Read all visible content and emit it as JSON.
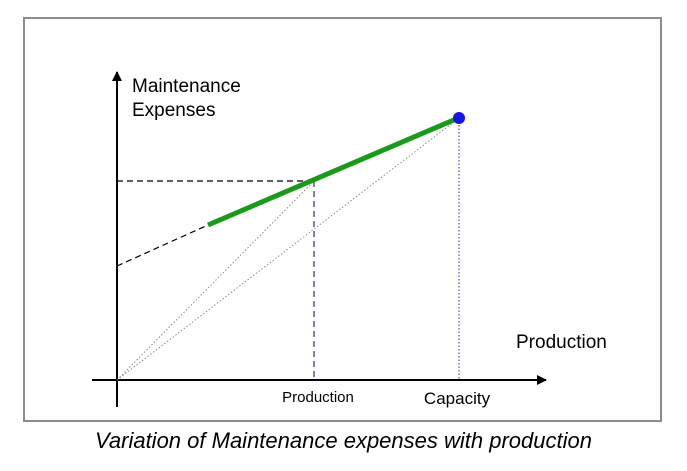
{
  "diagram": {
    "y_axis_label_line1": "Maintenance",
    "y_axis_label_line2": "Expenses",
    "x_axis_title": "Production",
    "x_tick_production": "Production",
    "x_tick_capacity": "Capacity",
    "caption": "Variation of Maintenance expenses with production",
    "colors": {
      "expense_line": "#1a9a1a",
      "capacity_point": "#1414e6",
      "guide_lines": "#2a2a8c",
      "ray_lines": "#8a8a8a",
      "frame": "#8c8c8c"
    }
  }
}
